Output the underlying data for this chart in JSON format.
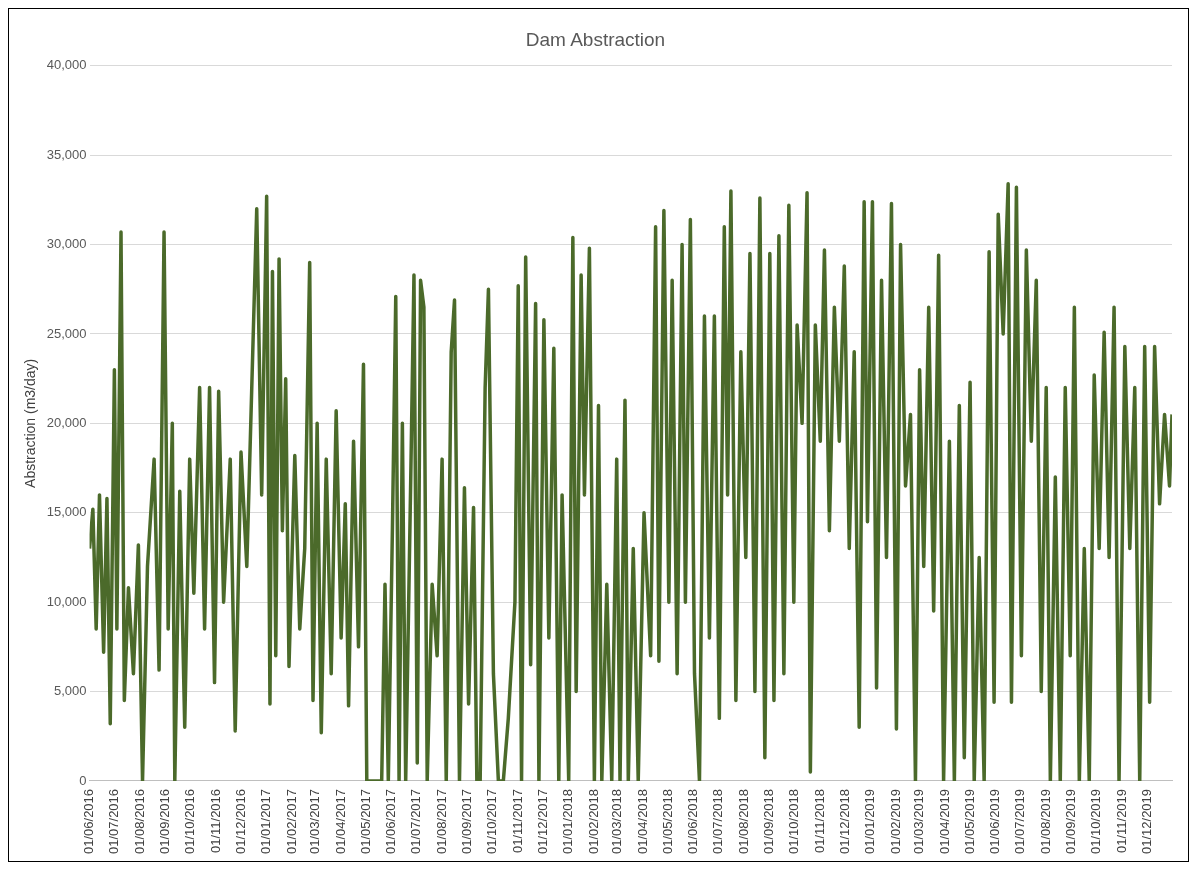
{
  "chart_data": {
    "type": "line",
    "title": "Dam Abstraction",
    "ylabel": "Abstraction (m3/day)",
    "x": [
      "2016-06-01",
      "2016-06-05",
      "2016-06-09",
      "2016-06-13",
      "2016-06-18",
      "2016-06-22",
      "2016-06-26",
      "2016-07-01",
      "2016-07-04",
      "2016-07-09",
      "2016-07-13",
      "2016-07-18",
      "2016-07-24",
      "2016-07-30",
      "2016-08-04",
      "2016-08-10",
      "2016-08-18",
      "2016-08-24",
      "2016-08-30",
      "2016-09-04",
      "2016-09-09",
      "2016-09-12",
      "2016-09-18",
      "2016-09-24",
      "2016-09-30",
      "2016-10-05",
      "2016-10-12",
      "2016-10-18",
      "2016-10-24",
      "2016-10-30",
      "2016-11-04",
      "2016-11-10",
      "2016-11-18",
      "2016-11-24",
      "2016-12-01",
      "2016-12-08",
      "2016-12-20",
      "2016-12-26",
      "2017-01-01",
      "2017-01-05",
      "2017-01-08",
      "2017-01-12",
      "2017-01-16",
      "2017-01-20",
      "2017-01-24",
      "2017-01-28",
      "2017-02-04",
      "2017-02-10",
      "2017-02-16",
      "2017-02-22",
      "2017-02-26",
      "2017-03-03",
      "2017-03-08",
      "2017-03-14",
      "2017-03-20",
      "2017-03-26",
      "2017-04-01",
      "2017-04-06",
      "2017-04-10",
      "2017-04-16",
      "2017-04-22",
      "2017-04-28",
      "2017-05-02",
      "2017-05-20",
      "2017-05-24",
      "2017-05-28",
      "2017-06-02",
      "2017-06-06",
      "2017-06-10",
      "2017-06-14",
      "2017-06-18",
      "2017-06-24",
      "2017-06-28",
      "2017-07-02",
      "2017-07-06",
      "2017-07-10",
      "2017-07-14",
      "2017-07-20",
      "2017-07-26",
      "2017-08-01",
      "2017-08-06",
      "2017-08-12",
      "2017-08-16",
      "2017-08-22",
      "2017-08-28",
      "2017-09-02",
      "2017-09-08",
      "2017-09-12",
      "2017-09-16",
      "2017-09-22",
      "2017-09-26",
      "2017-10-02",
      "2017-10-08",
      "2017-10-14",
      "2017-10-20",
      "2017-10-28",
      "2017-11-01",
      "2017-11-05",
      "2017-11-10",
      "2017-11-16",
      "2017-11-22",
      "2017-11-26",
      "2017-12-02",
      "2017-12-08",
      "2017-12-14",
      "2017-12-20",
      "2017-12-24",
      "2018-01-01",
      "2018-01-06",
      "2018-01-10",
      "2018-01-16",
      "2018-01-20",
      "2018-01-26",
      "2018-02-01",
      "2018-02-06",
      "2018-02-10",
      "2018-02-16",
      "2018-02-22",
      "2018-02-28",
      "2018-03-04",
      "2018-03-10",
      "2018-03-14",
      "2018-03-20",
      "2018-03-26",
      "2018-04-02",
      "2018-04-10",
      "2018-04-16",
      "2018-04-20",
      "2018-04-26",
      "2018-05-02",
      "2018-05-06",
      "2018-05-12",
      "2018-05-18",
      "2018-05-22",
      "2018-05-28",
      "2018-06-02",
      "2018-06-08",
      "2018-06-14",
      "2018-06-20",
      "2018-06-26",
      "2018-07-02",
      "2018-07-08",
      "2018-07-12",
      "2018-07-16",
      "2018-07-22",
      "2018-07-28",
      "2018-08-03",
      "2018-08-08",
      "2018-08-14",
      "2018-08-20",
      "2018-08-26",
      "2018-09-01",
      "2018-09-06",
      "2018-09-12",
      "2018-09-18",
      "2018-09-24",
      "2018-09-30",
      "2018-10-04",
      "2018-10-10",
      "2018-10-16",
      "2018-10-20",
      "2018-10-26",
      "2018-11-01",
      "2018-11-06",
      "2018-11-12",
      "2018-11-18",
      "2018-11-24",
      "2018-11-30",
      "2018-12-06",
      "2018-12-12",
      "2018-12-18",
      "2018-12-24",
      "2018-12-28",
      "2019-01-03",
      "2019-01-08",
      "2019-01-14",
      "2019-01-20",
      "2019-01-26",
      "2019-02-01",
      "2019-02-06",
      "2019-02-12",
      "2019-02-18",
      "2019-02-24",
      "2019-03-01",
      "2019-03-06",
      "2019-03-12",
      "2019-03-18",
      "2019-03-24",
      "2019-03-30",
      "2019-04-06",
      "2019-04-12",
      "2019-04-18",
      "2019-04-24",
      "2019-05-01",
      "2019-05-06",
      "2019-05-12",
      "2019-05-18",
      "2019-05-24",
      "2019-05-30",
      "2019-06-04",
      "2019-06-10",
      "2019-06-16",
      "2019-06-20",
      "2019-06-26",
      "2019-07-02",
      "2019-07-08",
      "2019-07-14",
      "2019-07-20",
      "2019-07-26",
      "2019-08-01",
      "2019-08-06",
      "2019-08-12",
      "2019-08-18",
      "2019-08-24",
      "2019-08-30",
      "2019-09-04",
      "2019-09-10",
      "2019-09-16",
      "2019-09-22",
      "2019-09-28",
      "2019-10-04",
      "2019-10-10",
      "2019-10-16",
      "2019-10-22",
      "2019-10-28",
      "2019-11-04",
      "2019-11-10",
      "2019-11-16",
      "2019-11-22",
      "2019-11-28",
      "2019-12-04",
      "2019-12-10",
      "2019-12-16",
      "2019-12-22",
      "2019-12-28",
      "2019-12-31"
    ],
    "series": [
      {
        "color": "#4b6a2a",
        "values": [
          13000,
          15200,
          8500,
          16000,
          7200,
          15800,
          3200,
          23000,
          8500,
          30700,
          4500,
          10800,
          6000,
          13200,
          0,
          12000,
          18000,
          6200,
          30700,
          8500,
          20000,
          0,
          16200,
          3000,
          18000,
          10500,
          22000,
          8500,
          22000,
          5500,
          21800,
          10000,
          18000,
          2800,
          18400,
          12000,
          32000,
          16000,
          32700,
          4300,
          28500,
          7000,
          29200,
          14000,
          22500,
          6400,
          18200,
          8500,
          13000,
          29000,
          4500,
          20000,
          2700,
          18000,
          6000,
          20700,
          8000,
          15500,
          4200,
          19000,
          7500,
          23300,
          0,
          0,
          11000,
          0,
          14200,
          27100,
          0,
          20000,
          0,
          16600,
          28300,
          1000,
          28000,
          26500,
          0,
          11000,
          7000,
          18000,
          0,
          24000,
          26900,
          0,
          16400,
          4300,
          15300,
          0,
          0,
          22000,
          27500,
          6000,
          0,
          0,
          3500,
          10000,
          27700,
          0,
          29300,
          6500,
          26700,
          0,
          25800,
          8000,
          24200,
          0,
          16000,
          0,
          30400,
          5000,
          28300,
          16000,
          29800,
          0,
          21000,
          0,
          11000,
          0,
          18000,
          0,
          21300,
          0,
          13000,
          0,
          15000,
          7000,
          31000,
          6700,
          31900,
          10000,
          28000,
          6000,
          30000,
          10000,
          31400,
          6000,
          0,
          26000,
          8000,
          26000,
          3500,
          31000,
          16000,
          33000,
          4500,
          24000,
          12500,
          29500,
          5000,
          32600,
          1300,
          29500,
          4500,
          30500,
          6000,
          32200,
          10000,
          25500,
          20000,
          32900,
          500,
          25500,
          19000,
          29700,
          14000,
          26500,
          19000,
          28800,
          13000,
          24000,
          3000,
          32400,
          14500,
          32400,
          5200,
          28000,
          12500,
          32300,
          2900,
          30000,
          16500,
          20500,
          0,
          23000,
          12000,
          26500,
          9500,
          29400,
          0,
          19000,
          0,
          21000,
          1300,
          22300,
          0,
          12500,
          0,
          29600,
          4400,
          31700,
          25000,
          33400,
          4400,
          33200,
          7000,
          29700,
          19000,
          28000,
          5000,
          22000,
          0,
          17000,
          0,
          22000,
          7000,
          26500,
          0,
          13000,
          0,
          22700,
          13000,
          25100,
          12500,
          26500,
          0,
          24300,
          13000,
          22000,
          0,
          24300,
          4400,
          24300,
          15500,
          20500,
          16500,
          20500
        ]
      }
    ],
    "xlim": [
      "2016-06-01",
      "2019-12-31"
    ],
    "xticks": [
      {
        "value": "2016-06-01",
        "label": "01/06/2016"
      },
      {
        "value": "2016-07-01",
        "label": "01/07/2016"
      },
      {
        "value": "2016-08-01",
        "label": "01/08/2016"
      },
      {
        "value": "2016-09-01",
        "label": "01/09/2016"
      },
      {
        "value": "2016-10-01",
        "label": "01/10/2016"
      },
      {
        "value": "2016-11-01",
        "label": "01/11/2016"
      },
      {
        "value": "2016-12-01",
        "label": "01/12/2016"
      },
      {
        "value": "2017-01-01",
        "label": "01/01/2017"
      },
      {
        "value": "2017-02-01",
        "label": "01/02/2017"
      },
      {
        "value": "2017-03-01",
        "label": "01/03/2017"
      },
      {
        "value": "2017-04-01",
        "label": "01/04/2017"
      },
      {
        "value": "2017-05-01",
        "label": "01/05/2017"
      },
      {
        "value": "2017-06-01",
        "label": "01/06/2017"
      },
      {
        "value": "2017-07-01",
        "label": "01/07/2017"
      },
      {
        "value": "2017-08-01",
        "label": "01/08/2017"
      },
      {
        "value": "2017-09-01",
        "label": "01/09/2017"
      },
      {
        "value": "2017-10-01",
        "label": "01/10/2017"
      },
      {
        "value": "2017-11-01",
        "label": "01/11/2017"
      },
      {
        "value": "2017-12-01",
        "label": "01/12/2017"
      },
      {
        "value": "2018-01-01",
        "label": "01/01/2018"
      },
      {
        "value": "2018-02-01",
        "label": "01/02/2018"
      },
      {
        "value": "2018-03-01",
        "label": "01/03/2018"
      },
      {
        "value": "2018-04-01",
        "label": "01/04/2018"
      },
      {
        "value": "2018-05-01",
        "label": "01/05/2018"
      },
      {
        "value": "2018-06-01",
        "label": "01/06/2018"
      },
      {
        "value": "2018-07-01",
        "label": "01/07/2018"
      },
      {
        "value": "2018-08-01",
        "label": "01/08/2018"
      },
      {
        "value": "2018-09-01",
        "label": "01/09/2018"
      },
      {
        "value": "2018-10-01",
        "label": "01/10/2018"
      },
      {
        "value": "2018-11-01",
        "label": "01/11/2018"
      },
      {
        "value": "2018-12-01",
        "label": "01/12/2018"
      },
      {
        "value": "2019-01-01",
        "label": "01/01/2019"
      },
      {
        "value": "2019-02-01",
        "label": "01/02/2019"
      },
      {
        "value": "2019-03-01",
        "label": "01/03/2019"
      },
      {
        "value": "2019-04-01",
        "label": "01/04/2019"
      },
      {
        "value": "2019-05-01",
        "label": "01/05/2019"
      },
      {
        "value": "2019-06-01",
        "label": "01/06/2019"
      },
      {
        "value": "2019-07-01",
        "label": "01/07/2019"
      },
      {
        "value": "2019-08-01",
        "label": "01/08/2019"
      },
      {
        "value": "2019-09-01",
        "label": "01/09/2019"
      },
      {
        "value": "2019-10-01",
        "label": "01/10/2019"
      },
      {
        "value": "2019-11-01",
        "label": "01/11/2019"
      },
      {
        "value": "2019-12-01",
        "label": "01/12/2019"
      }
    ],
    "ylim": [
      0,
      40000
    ],
    "yticks": [
      {
        "value": 0,
        "label": "0"
      },
      {
        "value": 5000,
        "label": "5,000"
      },
      {
        "value": 10000,
        "label": "10,000"
      },
      {
        "value": 15000,
        "label": "15,000"
      },
      {
        "value": 20000,
        "label": "20,000"
      },
      {
        "value": 25000,
        "label": "25,000"
      },
      {
        "value": 30000,
        "label": "30,000"
      },
      {
        "value": 35000,
        "label": "35,000"
      },
      {
        "value": 40000,
        "label": "40,000"
      }
    ],
    "grid": "y",
    "legend": false,
    "marker": "none",
    "line_style": "solid"
  }
}
